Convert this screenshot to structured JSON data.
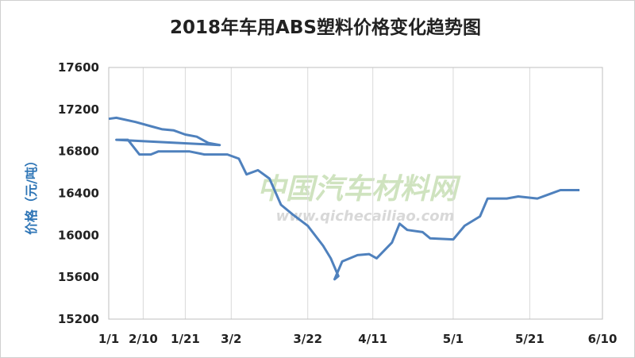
{
  "chart_data": {
    "type": "line",
    "title": "2018年车用ABS塑料价格变化趋势图",
    "y_label": "价格（元/吨）",
    "watermark": [
      "中国汽车材料网",
      "www.qichecailiao.com"
    ],
    "x": [
      "1/1",
      "1/3",
      "1/8",
      "1/12",
      "1/15",
      "1/18",
      "1/21",
      "1/24",
      "1/27",
      "1/30",
      "2/3",
      "2/6",
      "2/9",
      "2/12",
      "2/14",
      "2/22",
      "2/26",
      "3/1",
      "3/4",
      "3/6",
      "3/9",
      "3/12",
      "3/15",
      "3/18",
      "3/22",
      "3/26",
      "3/28",
      "3/30",
      "4/1",
      "4/3",
      "4/7",
      "4/10",
      "4/12",
      "4/16",
      "4/18",
      "4/20",
      "4/24",
      "4/26",
      "5/1",
      "5/4",
      "5/8",
      "5/10",
      "5/15",
      "5/18",
      "5/23",
      "5/26",
      "5/29",
      "6/4"
    ],
    "series": [
      {
        "name": "ABS",
        "color": "#4f81bd",
        "values": [
          17110,
          17120,
          17080,
          17040,
          17010,
          17000,
          16960,
          16940,
          16880,
          16860,
          16910,
          16910,
          16770,
          16770,
          16800,
          16800,
          16770,
          16770,
          16730,
          16580,
          16620,
          16540,
          16290,
          16200,
          16090,
          15900,
          15780,
          15610,
          15580,
          15750,
          15810,
          15820,
          15780,
          15930,
          16110,
          16050,
          16030,
          15970,
          15960,
          16090,
          16180,
          16350,
          16350,
          16370,
          16350,
          16390,
          16430,
          16430
        ]
      }
    ],
    "xlim": [
      "1/1",
      "6/10"
    ],
    "xticks": [
      "1/1",
      "1/21",
      "2/10",
      "3/2",
      "3/22",
      "4/11",
      "5/1",
      "5/21",
      "6/10"
    ],
    "ylim": [
      15200,
      17600
    ],
    "yticks": [
      15200,
      15600,
      16000,
      16400,
      16800,
      17200,
      17600
    ],
    "grid": true
  }
}
